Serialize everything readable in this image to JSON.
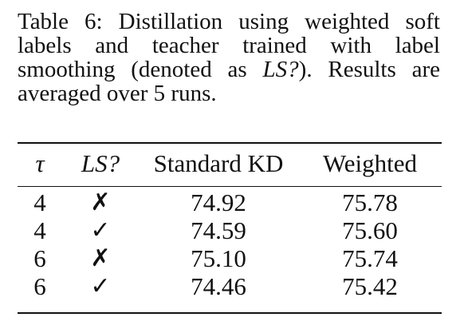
{
  "caption": {
    "part1": "Table 6: Distillation using weighted soft labels and teacher trained with label smoothing (denoted as ",
    "ls_term": "LS?",
    "part2": ").  Results are averaged over 5 runs."
  },
  "table": {
    "headers": {
      "tau": "τ",
      "ls": "LS?",
      "standard_kd": "Standard KD",
      "weighted": "Weighted"
    },
    "rows": [
      {
        "tau": "4",
        "ls": "✗",
        "standard_kd": "74.92",
        "weighted": "75.78"
      },
      {
        "tau": "4",
        "ls": "✓",
        "standard_kd": "74.59",
        "weighted": "75.60"
      },
      {
        "tau": "6",
        "ls": "✗",
        "standard_kd": "75.10",
        "weighted": "75.74"
      },
      {
        "tau": "6",
        "ls": "✓",
        "standard_kd": "74.46",
        "weighted": "75.42"
      }
    ]
  }
}
